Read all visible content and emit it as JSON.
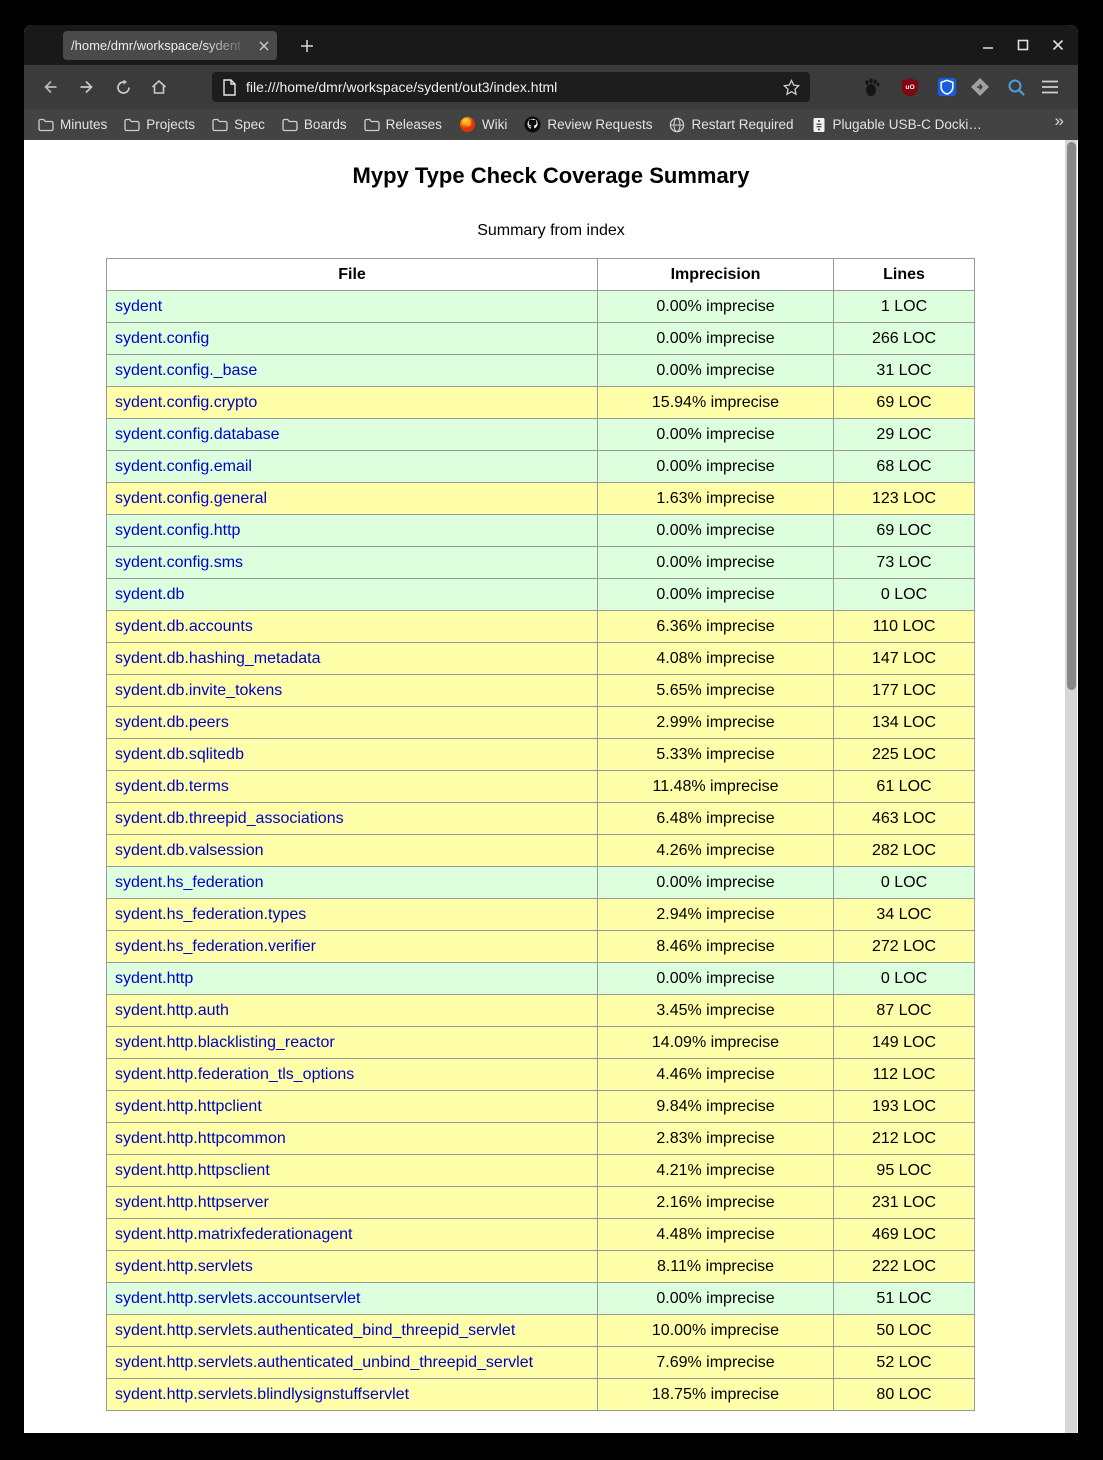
{
  "browser": {
    "tab_title": "/home/dmr/workspace/sydent",
    "url": "file:///home/dmr/workspace/sydent/out3/index.html",
    "icons": {
      "tab_close": "close-icon",
      "new_tab": "plus-icon",
      "window": [
        "minimize-icon",
        "maximize-icon",
        "close-icon"
      ],
      "nav": [
        "back-icon",
        "forward-icon",
        "reload-icon",
        "home-icon"
      ],
      "urlbar_left": "page-icon",
      "urlbar_right": "bookmark-star-icon",
      "extensions": [
        "gnome-foot-icon",
        "ublock-origin-icon",
        "bitwarden-icon",
        "gray-extension-icon"
      ],
      "toolbar_right": [
        "search-icon",
        "menu-icon"
      ]
    }
  },
  "bookmarks": {
    "items": [
      {
        "label": "Minutes",
        "icon": "folder"
      },
      {
        "label": "Projects",
        "icon": "folder"
      },
      {
        "label": "Spec",
        "icon": "folder"
      },
      {
        "label": "Boards",
        "icon": "folder"
      },
      {
        "label": "Releases",
        "icon": "folder"
      },
      {
        "label": "Wiki",
        "icon": "firefox"
      },
      {
        "label": "Review Requests",
        "icon": "github"
      },
      {
        "label": "Restart Required",
        "icon": "globe"
      },
      {
        "label": "Plugable USB-C Docki…",
        "icon": "plugable"
      }
    ],
    "overflow_glyph": "»"
  },
  "page": {
    "title": "Mypy Type Check Coverage Summary",
    "subtitle": "Summary from index",
    "colors": {
      "good": "#ddffdd",
      "imprecise": "#ffffaa",
      "link": "#0000cc"
    },
    "table": {
      "headers": [
        "File",
        "Imprecision",
        "Lines"
      ],
      "rows": [
        {
          "file": "sydent",
          "imprecision": "0.00% imprecise",
          "lines": "1 LOC",
          "quality": "good"
        },
        {
          "file": "sydent.config",
          "imprecision": "0.00% imprecise",
          "lines": "266 LOC",
          "quality": "good"
        },
        {
          "file": "sydent.config._base",
          "imprecision": "0.00% imprecise",
          "lines": "31 LOC",
          "quality": "good"
        },
        {
          "file": "sydent.config.crypto",
          "imprecision": "15.94% imprecise",
          "lines": "69 LOC",
          "quality": "imprecise"
        },
        {
          "file": "sydent.config.database",
          "imprecision": "0.00% imprecise",
          "lines": "29 LOC",
          "quality": "good"
        },
        {
          "file": "sydent.config.email",
          "imprecision": "0.00% imprecise",
          "lines": "68 LOC",
          "quality": "good"
        },
        {
          "file": "sydent.config.general",
          "imprecision": "1.63% imprecise",
          "lines": "123 LOC",
          "quality": "imprecise"
        },
        {
          "file": "sydent.config.http",
          "imprecision": "0.00% imprecise",
          "lines": "69 LOC",
          "quality": "good"
        },
        {
          "file": "sydent.config.sms",
          "imprecision": "0.00% imprecise",
          "lines": "73 LOC",
          "quality": "good"
        },
        {
          "file": "sydent.db",
          "imprecision": "0.00% imprecise",
          "lines": "0 LOC",
          "quality": "good"
        },
        {
          "file": "sydent.db.accounts",
          "imprecision": "6.36% imprecise",
          "lines": "110 LOC",
          "quality": "imprecise"
        },
        {
          "file": "sydent.db.hashing_metadata",
          "imprecision": "4.08% imprecise",
          "lines": "147 LOC",
          "quality": "imprecise"
        },
        {
          "file": "sydent.db.invite_tokens",
          "imprecision": "5.65% imprecise",
          "lines": "177 LOC",
          "quality": "imprecise"
        },
        {
          "file": "sydent.db.peers",
          "imprecision": "2.99% imprecise",
          "lines": "134 LOC",
          "quality": "imprecise"
        },
        {
          "file": "sydent.db.sqlitedb",
          "imprecision": "5.33% imprecise",
          "lines": "225 LOC",
          "quality": "imprecise"
        },
        {
          "file": "sydent.db.terms",
          "imprecision": "11.48% imprecise",
          "lines": "61 LOC",
          "quality": "imprecise"
        },
        {
          "file": "sydent.db.threepid_associations",
          "imprecision": "6.48% imprecise",
          "lines": "463 LOC",
          "quality": "imprecise"
        },
        {
          "file": "sydent.db.valsession",
          "imprecision": "4.26% imprecise",
          "lines": "282 LOC",
          "quality": "imprecise"
        },
        {
          "file": "sydent.hs_federation",
          "imprecision": "0.00% imprecise",
          "lines": "0 LOC",
          "quality": "good"
        },
        {
          "file": "sydent.hs_federation.types",
          "imprecision": "2.94% imprecise",
          "lines": "34 LOC",
          "quality": "imprecise"
        },
        {
          "file": "sydent.hs_federation.verifier",
          "imprecision": "8.46% imprecise",
          "lines": "272 LOC",
          "quality": "imprecise"
        },
        {
          "file": "sydent.http",
          "imprecision": "0.00% imprecise",
          "lines": "0 LOC",
          "quality": "good"
        },
        {
          "file": "sydent.http.auth",
          "imprecision": "3.45% imprecise",
          "lines": "87 LOC",
          "quality": "imprecise"
        },
        {
          "file": "sydent.http.blacklisting_reactor",
          "imprecision": "14.09% imprecise",
          "lines": "149 LOC",
          "quality": "imprecise"
        },
        {
          "file": "sydent.http.federation_tls_options",
          "imprecision": "4.46% imprecise",
          "lines": "112 LOC",
          "quality": "imprecise"
        },
        {
          "file": "sydent.http.httpclient",
          "imprecision": "9.84% imprecise",
          "lines": "193 LOC",
          "quality": "imprecise"
        },
        {
          "file": "sydent.http.httpcommon",
          "imprecision": "2.83% imprecise",
          "lines": "212 LOC",
          "quality": "imprecise"
        },
        {
          "file": "sydent.http.httpsclient",
          "imprecision": "4.21% imprecise",
          "lines": "95 LOC",
          "quality": "imprecise"
        },
        {
          "file": "sydent.http.httpserver",
          "imprecision": "2.16% imprecise",
          "lines": "231 LOC",
          "quality": "imprecise"
        },
        {
          "file": "sydent.http.matrixfederationagent",
          "imprecision": "4.48% imprecise",
          "lines": "469 LOC",
          "quality": "imprecise"
        },
        {
          "file": "sydent.http.servlets",
          "imprecision": "8.11% imprecise",
          "lines": "222 LOC",
          "quality": "imprecise"
        },
        {
          "file": "sydent.http.servlets.accountservlet",
          "imprecision": "0.00% imprecise",
          "lines": "51 LOC",
          "quality": "good"
        },
        {
          "file": "sydent.http.servlets.authenticated_bind_threepid_servlet",
          "imprecision": "10.00% imprecise",
          "lines": "50 LOC",
          "quality": "imprecise"
        },
        {
          "file": "sydent.http.servlets.authenticated_unbind_threepid_servlet",
          "imprecision": "7.69% imprecise",
          "lines": "52 LOC",
          "quality": "imprecise"
        },
        {
          "file": "sydent.http.servlets.blindlysignstuffservlet",
          "imprecision": "18.75% imprecise",
          "lines": "80 LOC",
          "quality": "imprecise"
        }
      ]
    }
  }
}
